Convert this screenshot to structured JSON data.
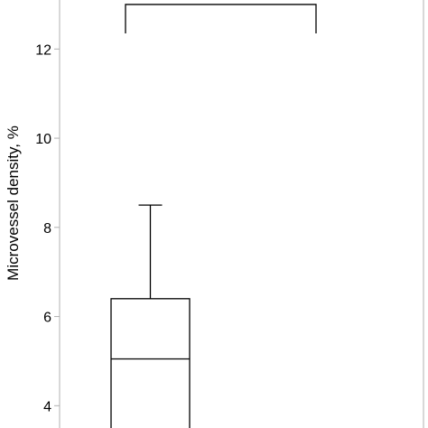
{
  "chart_data": {
    "type": "box",
    "ylabel": "Microvessel density, %",
    "ylim": [
      3.5,
      13.1
    ],
    "yticks": [
      4,
      6,
      8,
      10,
      12
    ],
    "ytick_labels": [
      "4",
      "6",
      "8",
      "10",
      "12"
    ],
    "grid": false,
    "boxes": [
      {
        "q1": null,
        "median": 5.05,
        "q3": 6.4,
        "whisker_high": 8.5,
        "whisker_low": null
      }
    ],
    "significance_bracket": {
      "y": 13.0,
      "tip": 12.35
    }
  }
}
